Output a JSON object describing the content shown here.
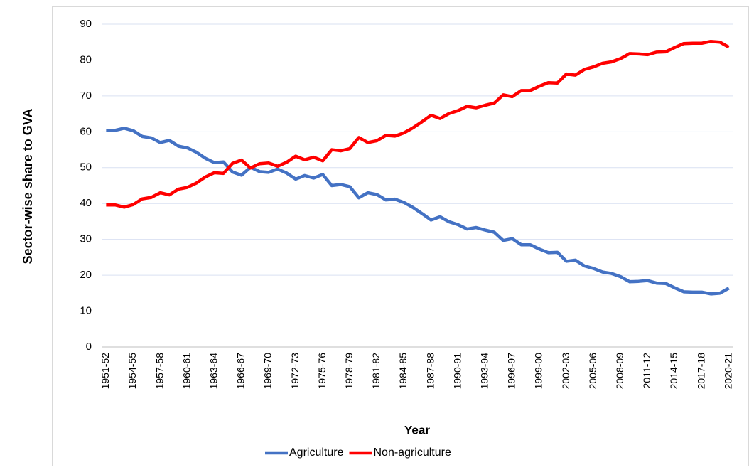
{
  "chart_data": {
    "type": "line",
    "y_label": "Sector-wise share to GVA",
    "x_label": "Year",
    "categories": [
      "1951-52",
      null,
      null,
      "1954-55",
      null,
      null,
      "1957-58",
      null,
      null,
      "1960-61",
      null,
      null,
      "1963-64",
      null,
      null,
      "1966-67",
      null,
      null,
      "1969-70",
      null,
      null,
      "1972-73",
      null,
      null,
      "1975-76",
      null,
      null,
      "1978-79",
      null,
      null,
      "1981-82",
      null,
      null,
      "1984-85",
      null,
      null,
      "1987-88",
      null,
      null,
      "1990-91",
      null,
      null,
      "1993-94",
      null,
      null,
      "1996-97",
      null,
      null,
      "1999-00",
      null,
      null,
      "2002-03",
      null,
      null,
      "2005-06",
      null,
      null,
      "2008-09",
      null,
      null,
      "2011-12",
      null,
      null,
      "2014-15",
      null,
      null,
      "2017-18",
      null,
      null,
      "2020-21"
    ],
    "series": [
      {
        "name": "Agriculture",
        "color": "#4472c4",
        "values": [
          60.4,
          60.4,
          61.0,
          60.3,
          58.7,
          58.3,
          57.0,
          57.6,
          56.0,
          55.5,
          54.3,
          52.6,
          51.4,
          51.6,
          48.8,
          47.9,
          50.1,
          48.9,
          48.7,
          49.6,
          48.5,
          46.8,
          47.8,
          47.1,
          48.1,
          45.0,
          45.3,
          44.7,
          41.6,
          43.0,
          42.5,
          41.0,
          41.2,
          40.3,
          38.9,
          37.2,
          35.4,
          36.3,
          34.9,
          34.1,
          32.9,
          33.3,
          32.6,
          32.0,
          29.7,
          30.2,
          28.5,
          28.5,
          27.3,
          26.3,
          26.4,
          23.9,
          24.2,
          22.6,
          21.9,
          20.9,
          20.5,
          19.6,
          18.2,
          18.3,
          18.5,
          17.8,
          17.7,
          16.5,
          15.4,
          15.3,
          15.3,
          14.8,
          15.0,
          16.4
        ]
      },
      {
        "name": "Non-agriculture",
        "color": "#ff0000",
        "values": [
          39.6,
          39.6,
          39.0,
          39.7,
          41.3,
          41.7,
          43.0,
          42.4,
          44.0,
          44.5,
          45.7,
          47.4,
          48.6,
          48.4,
          51.2,
          52.1,
          49.9,
          51.1,
          51.3,
          50.4,
          51.5,
          53.2,
          52.2,
          52.9,
          51.9,
          55.0,
          54.7,
          55.3,
          58.4,
          57.0,
          57.5,
          59.0,
          58.8,
          59.7,
          61.1,
          62.8,
          64.6,
          63.7,
          65.1,
          65.9,
          67.1,
          66.7,
          67.4,
          68.0,
          70.3,
          69.8,
          71.5,
          71.5,
          72.7,
          73.7,
          73.6,
          76.1,
          75.8,
          77.4,
          78.1,
          79.1,
          79.5,
          80.4,
          81.8,
          81.7,
          81.5,
          82.2,
          82.3,
          83.5,
          84.6,
          84.7,
          84.7,
          85.2,
          85.0,
          83.6
        ]
      }
    ],
    "ylim": [
      0,
      90
    ],
    "yticks": [
      0,
      10,
      20,
      30,
      40,
      50,
      60,
      70,
      80,
      90
    ],
    "grid": true,
    "legend": "bottom"
  }
}
